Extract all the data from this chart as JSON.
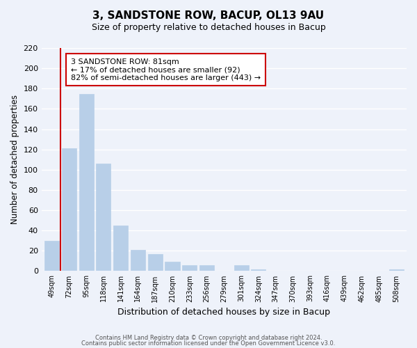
{
  "title": "3, SANDSTONE ROW, BACUP, OL13 9AU",
  "subtitle": "Size of property relative to detached houses in Bacup",
  "xlabel": "Distribution of detached houses by size in Bacup",
  "ylabel": "Number of detached properties",
  "bar_labels": [
    "49sqm",
    "72sqm",
    "95sqm",
    "118sqm",
    "141sqm",
    "164sqm",
    "187sqm",
    "210sqm",
    "233sqm",
    "256sqm",
    "279sqm",
    "301sqm",
    "324sqm",
    "347sqm",
    "370sqm",
    "393sqm",
    "416sqm",
    "439sqm",
    "462sqm",
    "485sqm",
    "508sqm"
  ],
  "bar_values": [
    30,
    121,
    175,
    106,
    45,
    21,
    17,
    9,
    6,
    6,
    0,
    6,
    2,
    0,
    0,
    0,
    0,
    0,
    0,
    0,
    2
  ],
  "bar_color": "#b8cfe8",
  "bar_edge_color": "#b8cfe8",
  "property_line_x": 0.5,
  "property_size": "81sqm",
  "pct_smaller": "17%",
  "n_smaller": 92,
  "pct_larger": "82%",
  "n_larger": 443,
  "annotation_box_color": "#ffffff",
  "annotation_box_edge": "#cc0000",
  "line_color": "#cc0000",
  "ylim": [
    0,
    220
  ],
  "yticks": [
    0,
    20,
    40,
    60,
    80,
    100,
    120,
    140,
    160,
    180,
    200,
    220
  ],
  "footer1": "Contains HM Land Registry data © Crown copyright and database right 2024.",
  "footer2": "Contains public sector information licensed under the Open Government Licence v3.0.",
  "background_color": "#eef2fa",
  "grid_color": "#ffffff"
}
